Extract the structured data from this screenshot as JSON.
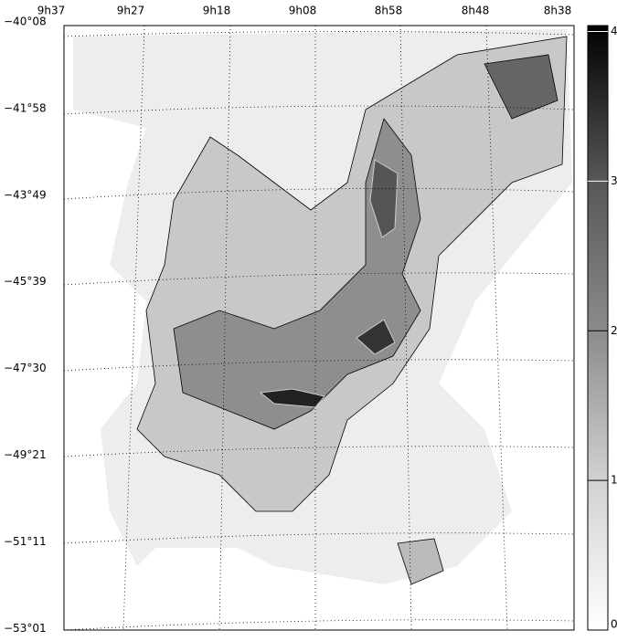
{
  "chart_data": {
    "type": "map",
    "ra_labels": [
      "9h37",
      "9h27",
      "9h18",
      "9h08",
      "8h58",
      "8h48",
      "8h38"
    ],
    "dec_labels": [
      "−40°08",
      "−41°58",
      "−43°49",
      "−45°39",
      "−47°30",
      "−49°21",
      "−51°11",
      "−53°01"
    ],
    "clim": [
      0,
      4.04
    ],
    "cticks": [
      0,
      1,
      2,
      3,
      4
    ]
  }
}
